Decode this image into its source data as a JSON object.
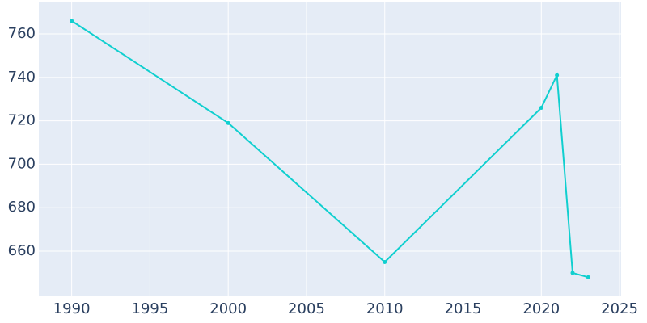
{
  "chart_data": {
    "type": "line",
    "x": [
      1990,
      2000,
      2010,
      2020,
      2021,
      2022,
      2023
    ],
    "series": [
      {
        "color": "#10cfcf",
        "values": [
          766,
          719,
          655,
          726,
          741,
          650,
          648
        ]
      }
    ],
    "xlim": [
      1987.9,
      2025.1
    ],
    "xticks": [
      1990,
      1995,
      2000,
      2005,
      2010,
      2015,
      2020,
      2025
    ],
    "ylim": [
      639.2,
      774.5
    ],
    "yticks": [
      660,
      680,
      700,
      720,
      740,
      760
    ],
    "grid": true
  }
}
